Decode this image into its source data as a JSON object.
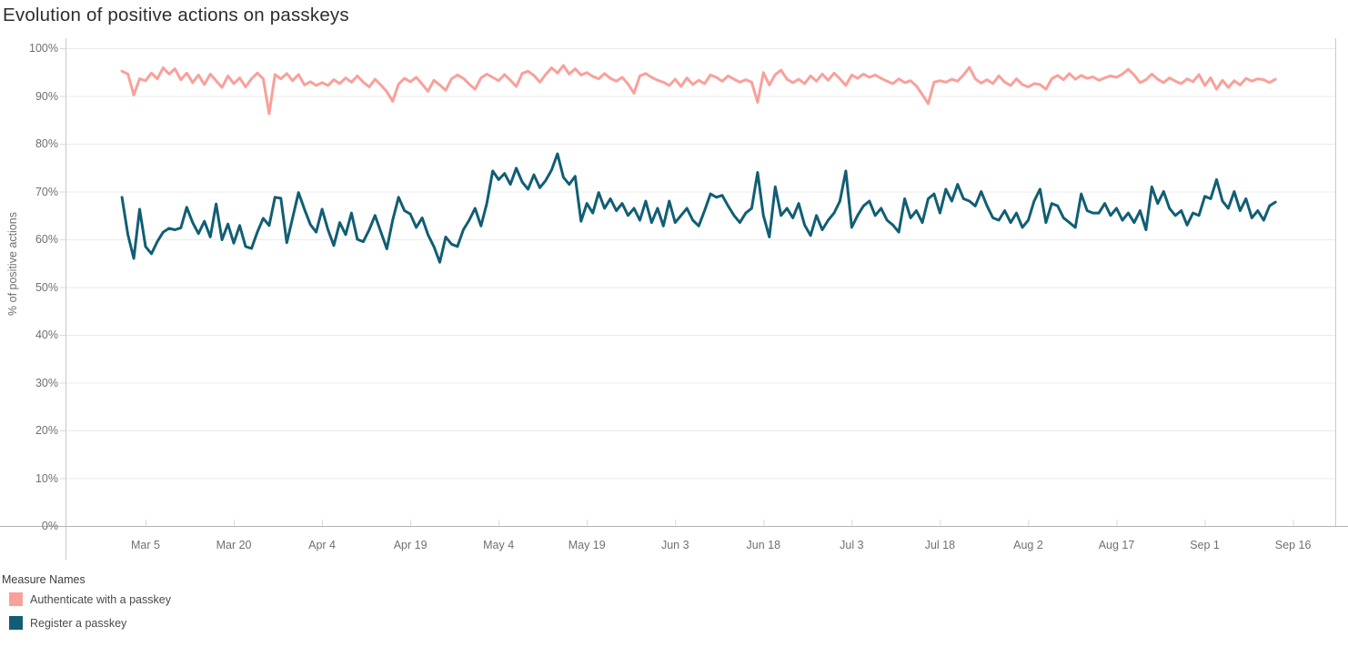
{
  "title": "Evolution of positive actions on passkeys",
  "colors": {
    "authenticate_series": "#F9A09A",
    "register_series": "#115E74",
    "grid": "#EBEBEB",
    "axis_line": "#B4B4B4",
    "pane_border": "#C9C9C9",
    "tick_mark": "#D9D9D9",
    "tick_label": "#707070",
    "title_text": "#2E2E2E"
  },
  "chart_data": {
    "type": "line",
    "title": "Evolution of positive actions on passkeys",
    "xlabel": "",
    "ylabel": "% of positive actions",
    "grid": "horizontal",
    "legend_position": "bottom-left",
    "x_axis": {
      "tick_labels": [
        "Mar 5",
        "Mar 20",
        "Apr 4",
        "Apr 19",
        "May 4",
        "May 19",
        "Jun 3",
        "Jun 18",
        "Jul 3",
        "Jul 18",
        "Aug 2",
        "Aug 17",
        "Sep 1",
        "Sep 16"
      ],
      "tick_days": [
        4,
        19,
        34,
        49,
        64,
        79,
        94,
        109,
        124,
        139,
        154,
        169,
        184,
        199
      ],
      "start_day_date": "Mar 1",
      "domain_days": [
        0,
        199
      ]
    },
    "y_axis": {
      "label": "% of positive actions",
      "tick_labels": [
        "0%",
        "10%",
        "20%",
        "30%",
        "40%",
        "50%",
        "60%",
        "70%",
        "80%",
        "90%",
        "100%"
      ],
      "tick_values": [
        0,
        10,
        20,
        30,
        40,
        50,
        60,
        70,
        80,
        90,
        100
      ],
      "min": 0,
      "max": 100,
      "unit": "%"
    },
    "series": [
      {
        "name": "Authenticate with a passkey",
        "color": "#F9A09A",
        "unit": "%",
        "first_point_day": 0,
        "values": [
          95.2,
          94.6,
          90.2,
          93.6,
          93.2,
          94.8,
          93.6,
          95.9,
          94.6,
          95.7,
          93.4,
          94.8,
          92.8,
          94.4,
          92.4,
          94.6,
          93.2,
          91.8,
          94.2,
          92.6,
          93.8,
          91.9,
          93.6,
          94.8,
          93.6,
          86.3,
          94.5,
          93.6,
          94.7,
          93.2,
          94.5,
          92.3,
          93.0,
          92.2,
          92.8,
          92.2,
          93.4,
          92.6,
          93.8,
          92.9,
          94.2,
          92.9,
          91.9,
          93.5,
          92.3,
          90.9,
          88.9,
          92.5,
          93.7,
          93.0,
          93.9,
          92.5,
          91.0,
          93.3,
          92.3,
          91.2,
          93.6,
          94.4,
          93.7,
          92.5,
          91.4,
          93.8,
          94.6,
          93.9,
          93.2,
          94.5,
          93.3,
          92.0,
          94.7,
          95.2,
          94.3,
          92.9,
          94.5,
          95.9,
          94.8,
          96.4,
          94.6,
          95.7,
          94.4,
          94.9,
          94.1,
          93.6,
          94.7,
          93.7,
          93.1,
          93.9,
          92.5,
          90.6,
          94.2,
          94.7,
          93.9,
          93.3,
          92.9,
          92.2,
          93.5,
          92.0,
          93.8,
          92.4,
          93.3,
          92.6,
          94.4,
          93.9,
          93.1,
          94.2,
          93.5,
          92.9,
          93.4,
          92.9,
          88.7,
          94.9,
          92.3,
          94.5,
          95.4,
          93.5,
          92.8,
          93.5,
          92.6,
          94.2,
          93.1,
          94.6,
          93.3,
          94.8,
          93.6,
          92.2,
          94.4,
          93.7,
          94.6,
          93.9,
          94.4,
          93.7,
          93.1,
          92.6,
          93.6,
          92.8,
          93.2,
          92.1,
          90.3,
          88.4,
          92.9,
          93.2,
          92.9,
          93.5,
          93.1,
          94.4,
          96.0,
          93.6,
          92.7,
          93.4,
          92.6,
          94.2,
          92.9,
          92.2,
          93.6,
          92.4,
          91.9,
          92.6,
          92.4,
          91.4,
          93.6,
          94.3,
          93.4,
          94.7,
          93.5,
          94.3,
          93.7,
          94.0,
          93.3,
          93.8,
          94.2,
          93.9,
          94.6,
          95.6,
          94.4,
          92.8,
          93.4,
          94.6,
          93.5,
          92.8,
          93.8,
          93.1,
          92.6,
          93.6,
          93.0,
          94.5,
          92.2,
          93.8,
          91.4,
          93.3,
          91.8,
          93.2,
          92.3,
          93.7,
          93.1,
          93.6,
          93.4,
          92.8,
          93.5
        ]
      },
      {
        "name": "Register a passkey",
        "color": "#115E74",
        "unit": "%",
        "first_point_day": 0,
        "values": [
          68.8,
          61.0,
          56.0,
          66.3,
          58.5,
          57.0,
          59.5,
          61.5,
          62.3,
          62.0,
          62.4,
          66.7,
          63.5,
          61.2,
          63.8,
          60.5,
          67.4,
          59.9,
          63.2,
          59.2,
          62.9,
          58.5,
          58.1,
          61.5,
          64.4,
          62.9,
          68.8,
          68.6,
          59.3,
          64.5,
          69.8,
          66.3,
          63.1,
          61.5,
          66.3,
          62.0,
          58.7,
          63.5,
          61.0,
          65.5,
          60.0,
          59.5,
          62.0,
          65.0,
          61.5,
          58.0,
          64.0,
          68.8,
          66.0,
          65.3,
          62.5,
          64.5,
          61.0,
          58.5,
          55.2,
          60.5,
          59.0,
          58.5,
          62.0,
          64.0,
          66.5,
          62.8,
          67.5,
          74.3,
          72.5,
          73.8,
          71.5,
          74.9,
          72.0,
          70.5,
          73.5,
          70.8,
          72.3,
          74.5,
          77.9,
          73.0,
          71.5,
          73.2,
          63.8,
          67.5,
          65.5,
          69.8,
          66.5,
          68.5,
          66.0,
          67.5,
          65.0,
          66.5,
          64.0,
          68.0,
          63.5,
          66.5,
          62.8,
          68.0,
          63.5,
          65.0,
          66.5,
          64.0,
          62.8,
          66.0,
          69.5,
          68.8,
          69.2,
          67.0,
          65.0,
          63.5,
          65.5,
          66.5,
          74.0,
          65.0,
          60.5,
          71.0,
          65.0,
          66.5,
          64.5,
          67.5,
          63.0,
          60.8,
          65.0,
          62.0,
          64.0,
          65.5,
          68.0,
          74.3,
          62.5,
          65.0,
          67.0,
          68.0,
          65.0,
          66.5,
          64.0,
          63.0,
          61.5,
          68.5,
          64.5,
          66.0,
          63.5,
          68.5,
          69.5,
          65.5,
          70.5,
          68.0,
          71.5,
          68.5,
          68.0,
          67.0,
          70.0,
          67.0,
          64.5,
          64.0,
          66.0,
          63.5,
          65.5,
          62.5,
          64.0,
          68.0,
          70.5,
          63.5,
          67.5,
          67.0,
          64.5,
          63.5,
          62.5,
          69.5,
          66.0,
          65.5,
          65.5,
          67.5,
          65.0,
          66.5,
          64.0,
          65.5,
          63.5,
          66.0,
          62.0,
          71.0,
          67.5,
          70.0,
          66.5,
          65.0,
          66.0,
          63.0,
          65.5,
          65.0,
          69.0,
          68.5,
          72.5,
          68.0,
          66.5,
          70.0,
          66.0,
          68.5,
          64.5,
          66.0,
          64.0,
          67.0,
          67.8
        ]
      }
    ]
  },
  "legend": {
    "title": "Measure Names",
    "items": [
      {
        "label": "Authenticate with a passkey",
        "color": "#F9A09A"
      },
      {
        "label": "Register a passkey",
        "color": "#115E74"
      }
    ]
  }
}
